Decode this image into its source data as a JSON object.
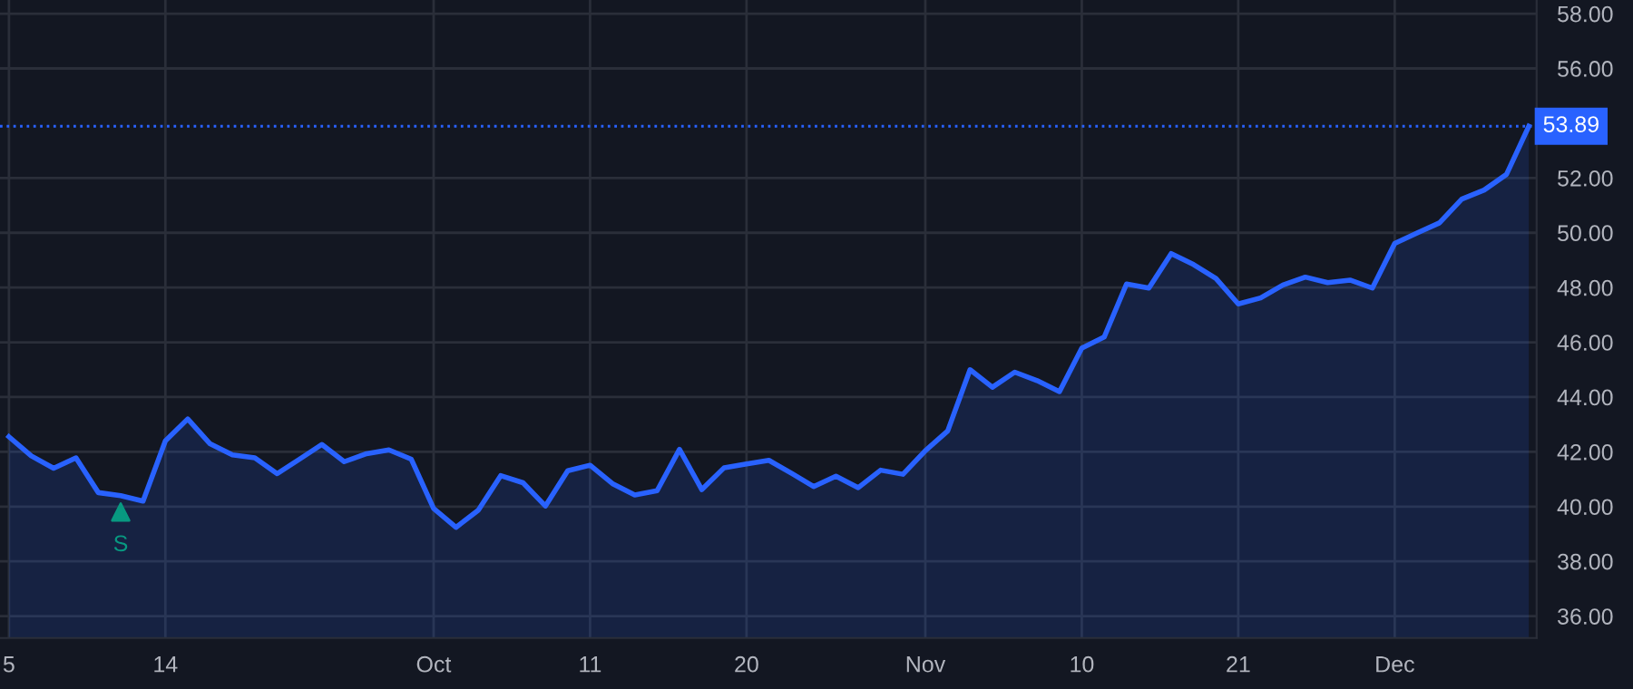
{
  "chart_data": {
    "type": "area",
    "categories": [
      "5",
      null,
      null,
      null,
      null,
      null,
      null,
      "14",
      null,
      null,
      null,
      null,
      null,
      null,
      null,
      null,
      null,
      null,
      null,
      "Oct",
      null,
      null,
      null,
      null,
      null,
      null,
      "11",
      null,
      null,
      null,
      null,
      null,
      null,
      "20",
      null,
      null,
      null,
      null,
      null,
      null,
      null,
      "Nov",
      null,
      null,
      null,
      null,
      null,
      null,
      "10",
      null,
      null,
      null,
      null,
      null,
      null,
      "21",
      null,
      null,
      null,
      null,
      null,
      null,
      "Dec",
      null,
      null,
      null,
      null,
      null,
      null
    ],
    "series": [
      {
        "color": "#2962ff",
        "values": [
          42.55,
          41.85,
          41.4,
          41.78,
          40.51,
          40.4,
          40.2,
          42.4,
          43.2,
          42.29,
          41.89,
          41.78,
          41.2,
          41.73,
          42.27,
          41.64,
          41.93,
          42.07,
          41.73,
          39.93,
          39.24,
          39.87,
          41.13,
          40.87,
          40.02,
          41.31,
          41.51,
          40.84,
          40.42,
          40.58,
          42.09,
          40.62,
          41.42,
          41.56,
          41.69,
          41.22,
          40.73,
          41.11,
          40.69,
          41.33,
          41.18,
          42.04,
          42.76,
          45.0,
          44.36,
          44.91,
          44.6,
          44.2,
          45.79,
          46.19,
          48.13,
          47.98,
          49.24,
          48.84,
          48.33,
          47.4,
          47.62,
          48.09,
          48.38,
          48.18,
          48.27,
          47.98,
          49.61,
          49.99,
          50.36,
          51.23,
          51.56,
          52.13,
          53.89
        ]
      },
      {
        "type": "scatter",
        "name": "S",
        "color": "#089981",
        "marker": "triangle",
        "values": [
          null,
          null,
          null,
          null,
          null,
          39.8,
          null,
          null,
          null,
          null,
          null,
          null,
          null,
          null,
          null,
          null,
          null,
          null,
          null,
          null,
          null,
          null,
          null,
          null,
          null,
          null,
          null,
          null,
          null,
          null,
          null,
          null,
          null,
          null,
          null,
          null,
          null,
          null,
          null,
          null,
          null,
          null,
          null,
          null,
          null,
          null,
          null,
          null,
          null,
          null,
          null,
          null,
          null,
          null,
          null,
          null,
          null,
          null,
          null,
          null,
          null,
          null,
          null,
          null,
          null,
          null,
          null,
          null,
          null
        ]
      }
    ],
    "ylim": [
      35.2,
      58.5
    ],
    "yticks": [
      {
        "value": 36,
        "label": "36.00"
      },
      {
        "value": 38,
        "label": "38.00"
      },
      {
        "value": 40,
        "label": "40.00"
      },
      {
        "value": 42,
        "label": "42.00"
      },
      {
        "value": 44,
        "label": "44.00"
      },
      {
        "value": 46,
        "label": "46.00"
      },
      {
        "value": 48,
        "label": "48.00"
      },
      {
        "value": 50,
        "label": "50.00"
      },
      {
        "value": 52,
        "label": "52.00"
      },
      {
        "value": 56,
        "label": "56.00"
      },
      {
        "value": 58,
        "label": "58.00"
      }
    ],
    "ref_lines": [
      {
        "axis": "y",
        "value": 53.89,
        "label": "53.89",
        "color": "#2962ff",
        "line_style": "dotted"
      }
    ],
    "grid": true,
    "legend": false
  }
}
